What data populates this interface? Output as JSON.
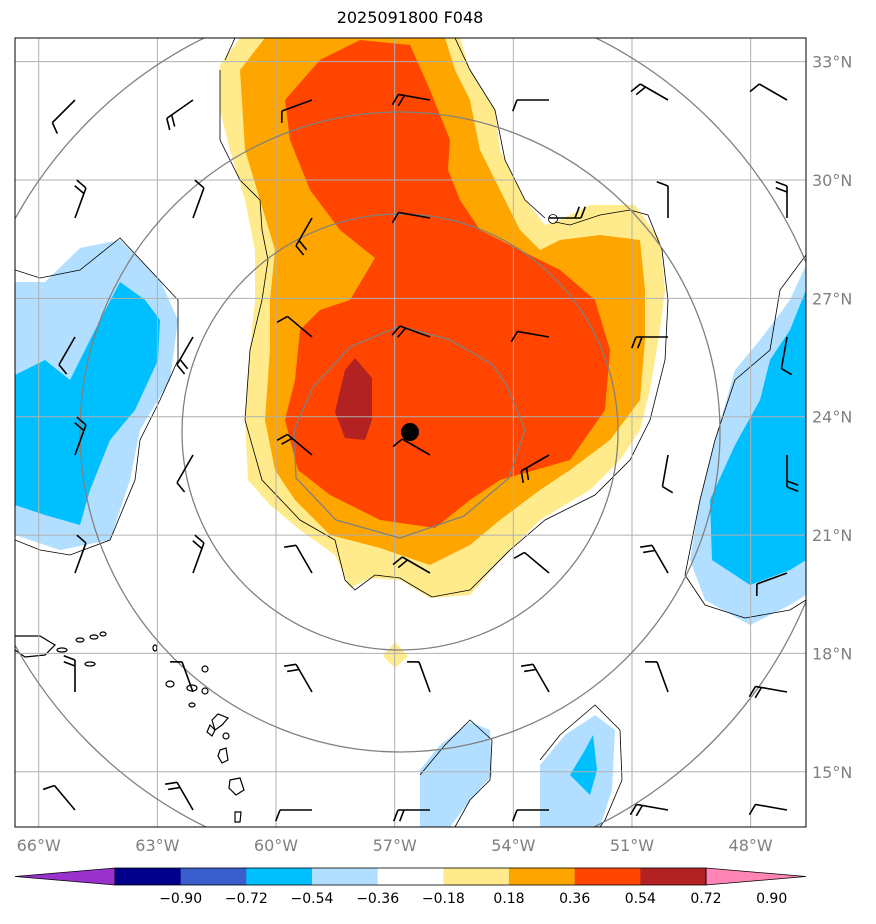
{
  "title": "2025091800 F048",
  "map": {
    "lon_range": [
      -66.6,
      -46.6
    ],
    "lat_range": [
      13.6,
      33.6
    ],
    "lon_ticks": [
      {
        "value": -66,
        "label": "66°W"
      },
      {
        "value": -63,
        "label": "63°W"
      },
      {
        "value": -60,
        "label": "60°W"
      },
      {
        "value": -57,
        "label": "57°W"
      },
      {
        "value": -54,
        "label": "54°W"
      },
      {
        "value": -51,
        "label": "51°W"
      },
      {
        "value": -48,
        "label": "48°W"
      }
    ],
    "lat_ticks": [
      {
        "value": 33,
        "label": "33°N"
      },
      {
        "value": 30,
        "label": "30°N"
      },
      {
        "value": 27,
        "label": "27°N"
      },
      {
        "value": 24,
        "label": "24°N"
      },
      {
        "value": 21,
        "label": "21°N"
      },
      {
        "value": 18,
        "label": "18°N"
      },
      {
        "value": 15,
        "label": "15°N"
      }
    ],
    "center_marker": {
      "lon": -56.6,
      "lat": 23.6
    },
    "grid": true,
    "range_rings": 4
  },
  "colorbar": {
    "ticks": [
      "−0.90",
      "−0.72",
      "−0.54",
      "−0.36",
      "−0.18",
      "0.18",
      "0.36",
      "0.54",
      "0.72",
      "0.90"
    ],
    "colors": [
      "#9932cc",
      "#00008b",
      "#3a5fcd",
      "#00bfff",
      "#b2dfff",
      "#ffffff",
      "#ffeb8c",
      "#ffa500",
      "#ff4500",
      "#b22222",
      "#ff85b4"
    ]
  },
  "colors": {
    "fill_018": "#ffeb8c",
    "fill_036": "#ffa500",
    "fill_054": "#ff4500",
    "fill_072": "#b22222",
    "neg_018": "#b2dfff",
    "neg_036": "#00bfff",
    "grid": "#b0b0b0",
    "ring": "#808080"
  }
}
